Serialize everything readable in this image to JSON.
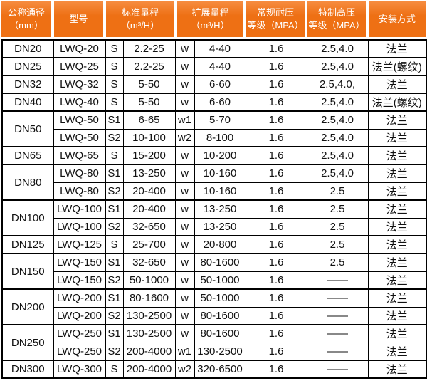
{
  "colors": {
    "header_bg": "#ee7014",
    "header_bg_top": "#f68c3f",
    "header_text": "#ffffff",
    "border_color": "#000000",
    "text_color": "#111111",
    "page_bg": "#ffffff"
  },
  "table": {
    "headers": [
      {
        "line1": "公称通径",
        "line2": "（mm）"
      },
      {
        "line1": "型号",
        "line2": ""
      },
      {
        "line1": "标准量程",
        "line2": "（m³/H）"
      },
      {
        "line1": "扩展量程",
        "line2": "（m³/H）"
      },
      {
        "line1": "常规耐压",
        "line2": "等级（MPA）"
      },
      {
        "line1": "特制高压",
        "line2": "等级（MPA）"
      },
      {
        "line1": "安装方式",
        "line2": ""
      }
    ],
    "rows": [
      {
        "dn": "DN20",
        "span": 1,
        "model": "LWQ-20",
        "s": "S",
        "std": "2.2-25",
        "w": "w",
        "ext": "4-40",
        "pn": "1.6",
        "hp": "2.5,4.0",
        "mount": "法兰"
      },
      {
        "dn": "DN25",
        "span": 1,
        "model": "LWQ-25",
        "s": "S",
        "std": "2.2-25",
        "w": "w",
        "ext": "4-40",
        "pn": "1.6",
        "hp": "2.5,4.0",
        "mount": "法兰(螺纹)"
      },
      {
        "dn": "DN32",
        "span": 1,
        "model": "LWQ-32",
        "s": "S",
        "std": "5-50",
        "w": "w",
        "ext": "6-60",
        "pn": "1.6",
        "hp": "2.5,4.0,",
        "mount": "法兰"
      },
      {
        "dn": "DN40",
        "span": 1,
        "model": "LWQ-40",
        "s": "S",
        "std": "5-50",
        "w": "w",
        "ext": "6-60",
        "pn": "1.6",
        "hp": "2.5,4.0",
        "mount": "法兰(螺纹)"
      },
      {
        "dn": "DN50",
        "span": 2,
        "model": "LWQ-50",
        "s": "S1",
        "std": "6-65",
        "w": "w1",
        "ext": "5-70",
        "pn": "1.6",
        "hp": "2.5,4.0",
        "mount": "法兰"
      },
      {
        "model": "LWQ-50",
        "s": "S2",
        "std": "10-100",
        "w": "w2",
        "ext": "8-100",
        "pn": "1.6",
        "hp": "2.5,4.0",
        "mount": "法兰"
      },
      {
        "dn": "DN65",
        "span": 1,
        "model": "LWQ-65",
        "s": "S",
        "std": "15-200",
        "w": "w",
        "ext": "10-200",
        "pn": "1.6",
        "hp": "2.5,4.0",
        "mount": "法兰"
      },
      {
        "dn": "DN80",
        "span": 2,
        "model": "LWQ-80",
        "s": "S1",
        "std": "13-250",
        "w": "w",
        "ext": "10-160",
        "pn": "1.6",
        "hp": "2.5,4.0",
        "mount": "法兰"
      },
      {
        "model": "LWQ-80",
        "s": "S2",
        "std": "20-400",
        "w": "w",
        "ext": "10-160",
        "pn": "1.6",
        "hp": "2.5",
        "mount": "法兰"
      },
      {
        "dn": "DN100",
        "span": 2,
        "model": "LWQ-100",
        "s": "S1",
        "std": "20-400",
        "w": "w",
        "ext": "13-250",
        "pn": "1.6",
        "hp": "2.5",
        "mount": "法兰"
      },
      {
        "model": "LWQ-100",
        "s": "S2",
        "std": "32-650",
        "w": "w",
        "ext": "13-250",
        "pn": "1.6",
        "hp": "2.5",
        "mount": "法兰"
      },
      {
        "dn": "DN125",
        "span": 1,
        "model": "LWQ-125",
        "s": "S",
        "std": "25-700",
        "w": "w",
        "ext": "20-800",
        "pn": "1.6",
        "hp": "2.5",
        "mount": "法兰"
      },
      {
        "dn": "DN150",
        "span": 2,
        "model": "LWQ-150",
        "s": "S1",
        "std": "32-650",
        "w": "w",
        "ext": "80-1600",
        "pn": "1.6",
        "hp": "2.5",
        "mount": "法兰"
      },
      {
        "model": "LWQ-150",
        "s": "S2",
        "std": "50-1000",
        "w": "w",
        "ext": "50-1000",
        "pn": "1.6",
        "hp": "——",
        "mount": "法兰"
      },
      {
        "dn": "DN200",
        "span": 2,
        "model": "LWQ-200",
        "s": "S1",
        "std": "80-1600",
        "w": "w",
        "ext": "50-1000",
        "pn": "1.6",
        "hp": "——",
        "mount": "法兰"
      },
      {
        "model": "LWQ-200",
        "s": "S2",
        "std": "130-2500",
        "w": "w",
        "ext": "80-1600",
        "pn": "1.6",
        "hp": "——",
        "mount": "法兰"
      },
      {
        "dn": "DN250",
        "span": 2,
        "model": "LWQ-250",
        "s": "S1",
        "std": "130-2500",
        "w": "w",
        "ext": "80-1600",
        "pn": "1.6",
        "hp": "——",
        "mount": "法兰"
      },
      {
        "model": "LWQ-250",
        "s": "S2",
        "std": "200-4000",
        "w": "w1",
        "ext": "130-2500",
        "pn": "1.6",
        "hp": "——",
        "mount": "法兰"
      },
      {
        "dn": "DN300",
        "span": 1,
        "model": "LWQ-300",
        "s": "S",
        "std": "200-4000",
        "w": "w2",
        "ext": "320-6500",
        "pn": "1.6",
        "hp": "——",
        "mount": "法兰"
      }
    ]
  }
}
